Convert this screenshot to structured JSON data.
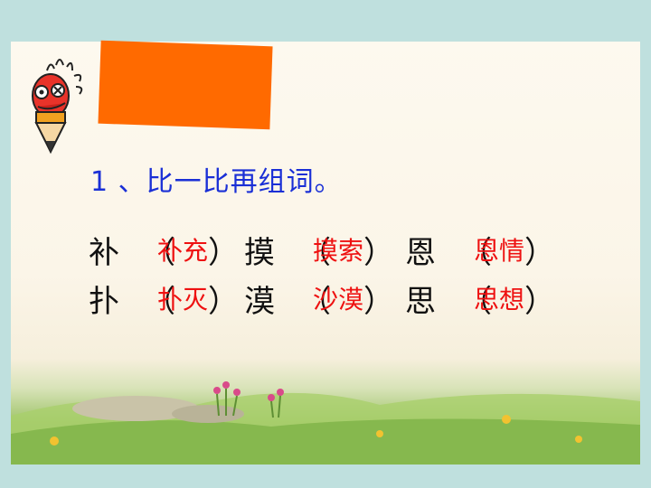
{
  "heading": "1 、比一比再组词。",
  "rows": [
    [
      {
        "char": "补",
        "open": "（",
        "answer": "补充",
        "close": "）"
      },
      {
        "char": "摸",
        "open": "（",
        "answer": "摸索",
        "close": "）"
      },
      {
        "char": "恩",
        "open": "（",
        "answer": "恩情",
        "close": "）"
      }
    ],
    [
      {
        "char": "扑",
        "open": "（",
        "answer": "扑灭",
        "close": "）"
      },
      {
        "char": "漠",
        "open": "（",
        "answer": "沙漠",
        "close": "）"
      },
      {
        "char": "思",
        "open": "（",
        "answer": "思想",
        "close": "）"
      }
    ]
  ],
  "colors": {
    "background": "#bfe0de",
    "heading": "#1a2fd6",
    "answer": "#ee1111",
    "orange_box": "#ff6a00"
  },
  "icons": [
    "pencil-mascot-icon"
  ]
}
